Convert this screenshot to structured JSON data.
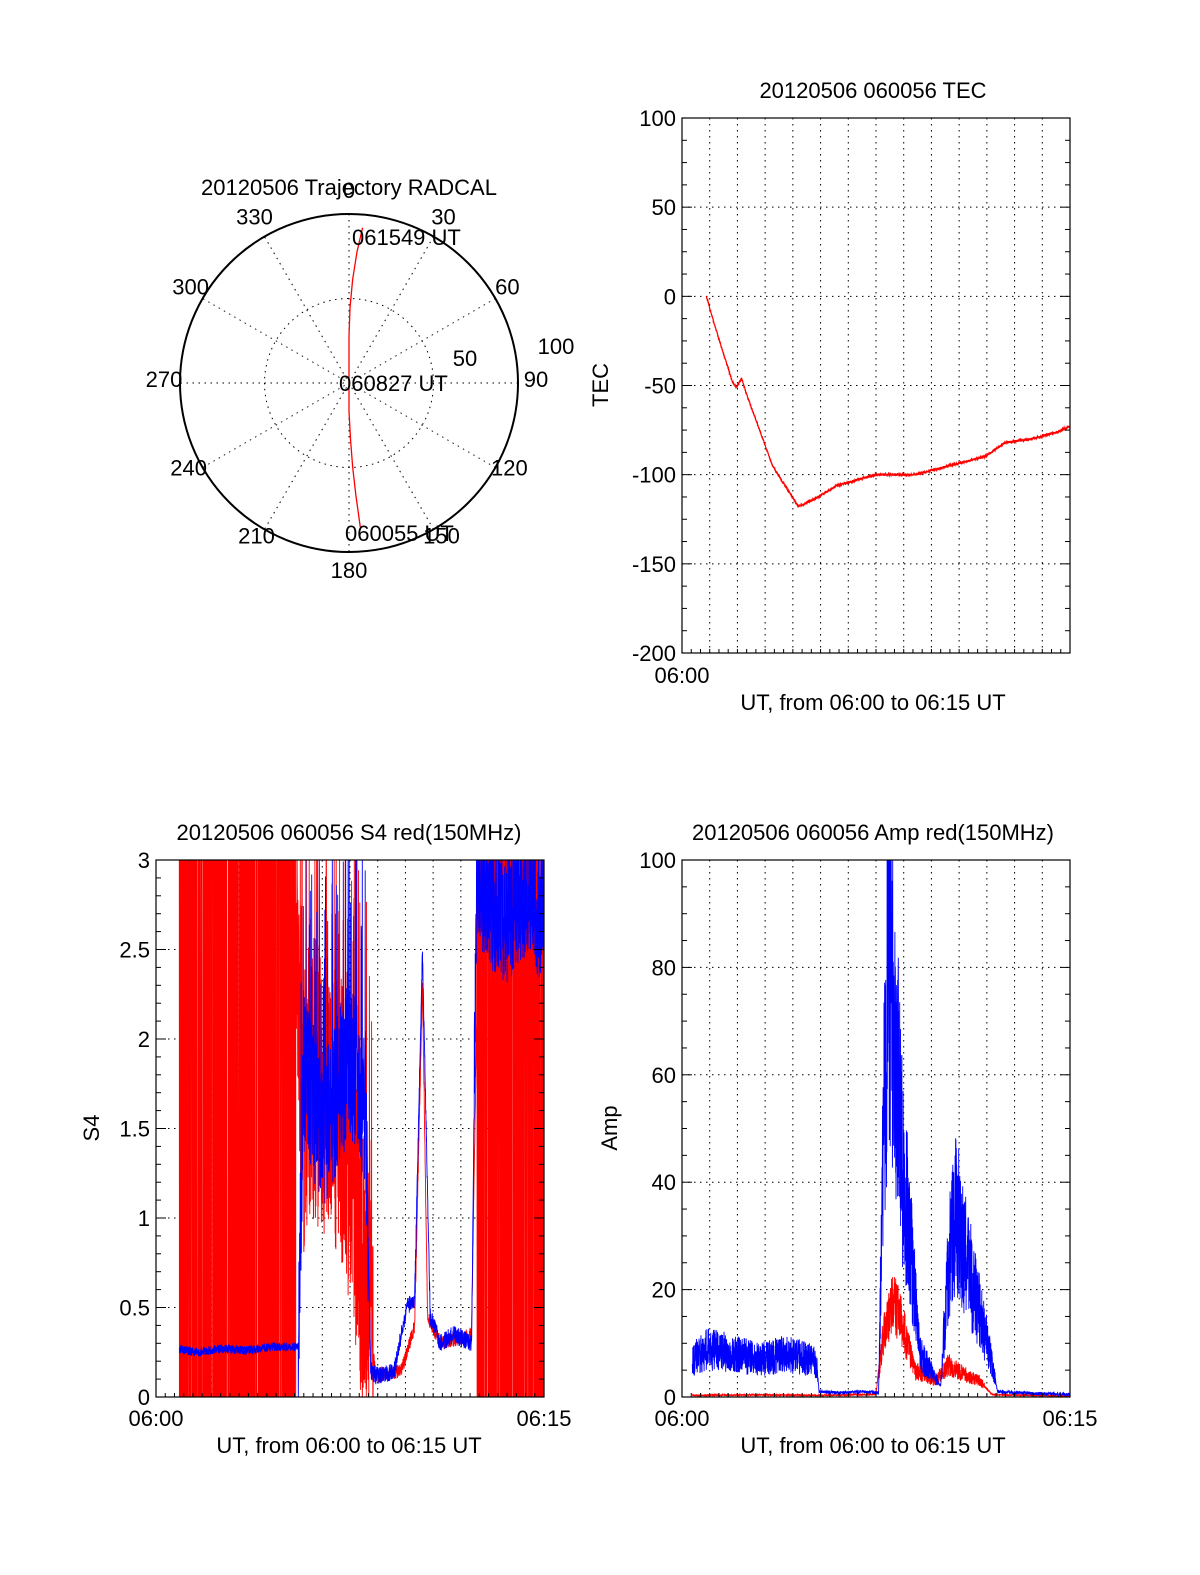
{
  "chart_data": [
    {
      "type": "polar",
      "title": "20120506 Trajectory RADCAL",
      "angle_labels": [
        "0",
        "30",
        "60",
        "90",
        "120",
        "150",
        "180",
        "210",
        "240",
        "270",
        "300",
        "330"
      ],
      "radius_labels": [
        "50",
        "100"
      ],
      "rlim": [
        0,
        100
      ],
      "annotations": [
        "061549 UT",
        "060827 UT",
        "060055 UT"
      ],
      "series": [
        {
          "color": "#ff0000",
          "azimuth": [
            5,
            3.5,
            2,
            0.8,
            0,
            0,
            180,
            178.5,
            177.5,
            176.5,
            175.5
          ],
          "elevation": [
            7,
            20,
            35,
            50,
            65,
            90,
            75,
            60,
            45,
            30,
            13
          ]
        }
      ]
    },
    {
      "type": "line",
      "title": "20120506 060056 TEC",
      "xlabel": "UT, from 06:00 to 06:15 UT",
      "ylabel": "TEC",
      "xlim": [
        0,
        15
      ],
      "ylim": [
        -200,
        100
      ],
      "yticks": [
        "100",
        "50",
        "0",
        "-50",
        "-100",
        "-150",
        "-200"
      ],
      "xticks": [
        "06:00"
      ],
      "grid": true,
      "series": [
        {
          "color": "#ff0000",
          "x": [
            0.94,
            1.3,
            1.6,
            1.95,
            2.1,
            2.3,
            2.5,
            3,
            3.5,
            4.5,
            5.2,
            6,
            7.5,
            9,
            11.7,
            12.5,
            13.5,
            14.5,
            15
          ],
          "y": [
            0,
            -18,
            -32,
            -48,
            -51,
            -46,
            -55,
            -75,
            -95,
            -118,
            -113,
            -106,
            -100,
            -100,
            -90,
            -82,
            -80,
            -76,
            -73
          ]
        }
      ]
    },
    {
      "type": "line",
      "title": "20120506 060056 S4 red(150MHz)",
      "xlabel": "UT, from 06:00 to 06:15 UT",
      "ylabel": "S4",
      "xlim": [
        0,
        15
      ],
      "ylim": [
        0,
        3
      ],
      "yticks": [
        "3",
        "2.5",
        "2",
        "1.5",
        "1",
        "0.5",
        "0"
      ],
      "xticks": [
        "06:00",
        "06:15"
      ],
      "grid": true,
      "series": [
        {
          "color": "#ff0000",
          "x": [
            0.9,
            5.4,
            5.6,
            6,
            7,
            7.3,
            8.5,
            9,
            9.5,
            10,
            10.3,
            10.5,
            11,
            12.2,
            12.5,
            13,
            14,
            15
          ],
          "y": [
            3,
            3,
            1.5,
            1.8,
            1.6,
            1.5,
            0.12,
            0.13,
            0.15,
            0.4,
            2.3,
            0.45,
            0.3,
            0.35,
            3,
            3,
            3,
            3
          ]
        },
        {
          "color": "#0000ff",
          "x": [
            0.9,
            1.5,
            2.5,
            3.5,
            4.5,
            5.5,
            5.7,
            6.5,
            7.5,
            8.1,
            8.3,
            8.5,
            9.2,
            9.7,
            10,
            10.3,
            10.6,
            11,
            11.5,
            12.2,
            12.4,
            12.7,
            13.5,
            14.5,
            15
          ],
          "y": [
            0.27,
            0.25,
            0.27,
            0.26,
            0.28,
            0.28,
            1.8,
            1.5,
            1.9,
            1.6,
            0.15,
            0.12,
            0.14,
            0.5,
            0.55,
            2.5,
            0.45,
            0.3,
            0.35,
            0.3,
            3,
            2.8,
            2.7,
            2.9,
            2.6
          ]
        }
      ]
    },
    {
      "type": "line",
      "title": "20120506 060056 Amp red(150MHz)",
      "xlabel": "UT, from 06:00 to 06:15 UT",
      "ylabel": "Amp",
      "xlim": [
        0,
        15
      ],
      "ylim": [
        0,
        100
      ],
      "yticks": [
        "100",
        "80",
        "60",
        "40",
        "20",
        "0"
      ],
      "xticks": [
        "06:00",
        "06:15"
      ],
      "grid": true,
      "series": [
        {
          "color": "#ff0000",
          "x": [
            0.4,
            3,
            5.2,
            7.5,
            7.8,
            8.2,
            8.6,
            9,
            9.8,
            10.3,
            11,
            11.5,
            12,
            15
          ],
          "y": [
            0.3,
            0.4,
            0.3,
            0.5,
            12,
            18,
            12,
            5,
            3,
            6,
            4,
            3,
            0.4,
            0.2
          ]
        },
        {
          "color": "#0000ff",
          "x": [
            0.4,
            1,
            2,
            3,
            4,
            5,
            5.2,
            5.3,
            6,
            7,
            7.6,
            7.8,
            8,
            8.2,
            8.5,
            8.8,
            9.2,
            9.6,
            10,
            10.3,
            10.6,
            11,
            11.3,
            11.7,
            12,
            12.2,
            13,
            14,
            15
          ],
          "y": [
            7,
            9,
            8,
            7,
            8,
            7,
            6,
            1,
            0.8,
            1,
            0.8,
            50,
            85,
            70,
            45,
            30,
            8,
            5,
            2,
            25,
            35,
            25,
            20,
            12,
            6,
            1,
            0.8,
            0.6,
            0.5
          ]
        }
      ]
    }
  ]
}
